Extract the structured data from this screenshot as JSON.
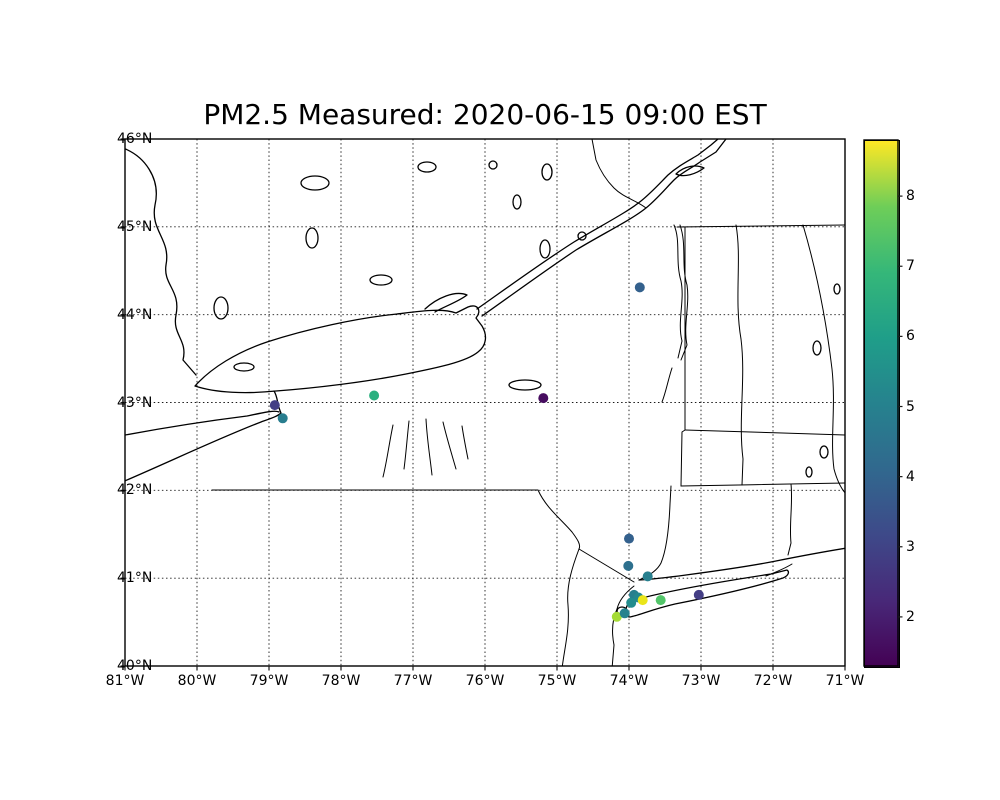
{
  "chart_data": {
    "type": "scatter",
    "title": "PM2.5 Measured: 2020-06-15 09:00 EST",
    "projection": "longitude-latitude map of the New York State region",
    "x_axis": {
      "min": -81,
      "max": -71,
      "tick_values": [
        -81,
        -80,
        -79,
        -78,
        -77,
        -76,
        -75,
        -74,
        -73,
        -72,
        -71
      ],
      "tick_labels": [
        "81°W",
        "80°W",
        "79°W",
        "78°W",
        "77°W",
        "76°W",
        "75°W",
        "74°W",
        "73°W",
        "72°W",
        "71°W"
      ]
    },
    "y_axis": {
      "min": 40,
      "max": 46,
      "tick_values": [
        40,
        41,
        42,
        43,
        44,
        45,
        46
      ],
      "tick_labels": [
        "40°N",
        "41°N",
        "42°N",
        "43°N",
        "44°N",
        "45°N",
        "46°N"
      ]
    },
    "grid": {
      "visible": true,
      "style": "dotted",
      "color": "#1a1a1a"
    },
    "colorbar": {
      "colormap": "viridis",
      "position": "right",
      "vmin": 1.3,
      "vmax": 8.8,
      "tick_values": [
        2,
        3,
        4,
        5,
        6,
        7,
        8
      ],
      "tick_labels": [
        "2",
        "3",
        "4",
        "5",
        "6",
        "7",
        "8"
      ],
      "gradient_stops_top_to_bottom": [
        "#fde725",
        "#6ece58",
        "#35b779",
        "#1f9e89",
        "#26828e",
        "#31688e",
        "#3e4989",
        "#482878",
        "#440154"
      ]
    },
    "marker": {
      "shape": "circle",
      "radius_px": 5
    },
    "points": [
      {
        "lon": -73.85,
        "lat": 44.31,
        "value": 3.8,
        "color": "#34618d"
      },
      {
        "lon": -77.54,
        "lat": 43.08,
        "value": 6.5,
        "color": "#2ab07f"
      },
      {
        "lon": -75.19,
        "lat": 43.05,
        "value": 1.5,
        "color": "#470d60"
      },
      {
        "lon": -78.92,
        "lat": 42.97,
        "value": 2.7,
        "color": "#433e85"
      },
      {
        "lon": -78.81,
        "lat": 42.82,
        "value": 4.8,
        "color": "#287d8e"
      },
      {
        "lon": -74.0,
        "lat": 41.45,
        "value": 3.8,
        "color": "#34618d"
      },
      {
        "lon": -74.01,
        "lat": 41.14,
        "value": 4.4,
        "color": "#2d708e"
      },
      {
        "lon": -73.74,
        "lat": 41.02,
        "value": 4.9,
        "color": "#277f8e"
      },
      {
        "lon": -73.93,
        "lat": 40.81,
        "value": 4.9,
        "color": "#277f8e"
      },
      {
        "lon": -73.87,
        "lat": 40.78,
        "value": 5.2,
        "color": "#24878e"
      },
      {
        "lon": -73.97,
        "lat": 40.72,
        "value": 5.4,
        "color": "#228c8d"
      },
      {
        "lon": -73.81,
        "lat": 40.75,
        "value": 8.7,
        "color": "#eae51a"
      },
      {
        "lon": -73.56,
        "lat": 40.75,
        "value": 7.4,
        "color": "#52c569"
      },
      {
        "lon": -74.17,
        "lat": 40.56,
        "value": 8.2,
        "color": "#a5db36"
      },
      {
        "lon": -74.06,
        "lat": 40.6,
        "value": 5.0,
        "color": "#26828e"
      },
      {
        "lon": -73.03,
        "lat": 40.81,
        "value": 2.7,
        "color": "#443e85"
      }
    ]
  },
  "colors": {
    "background": "#ffffff",
    "axes_border": "#000000",
    "text": "#000000"
  }
}
